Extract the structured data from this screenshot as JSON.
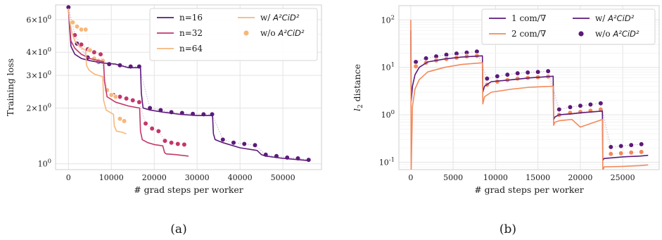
{
  "captions": {
    "a": "(a)",
    "b": "(b)"
  },
  "chart_data": [
    {
      "type": "line",
      "panel": "a",
      "xlabel": "# grad steps per worker",
      "ylabel": "Training loss",
      "yscale": "log",
      "xlim": [
        -3000,
        59000
      ],
      "ylim": [
        0.93,
        7.2
      ],
      "xticks": [
        0,
        10000,
        20000,
        30000,
        40000,
        50000
      ],
      "xtick_labels": [
        "0",
        "10000",
        "20000",
        "30000",
        "40000",
        "50000"
      ],
      "yticks": [
        1,
        2,
        3,
        4,
        6
      ],
      "ytick_labels": [
        "10^0",
        "2×10^0",
        "3×10^0",
        "4×10^0",
        "6×10^0"
      ],
      "grid": true,
      "legend_position": "top-right",
      "legend": [
        {
          "label": "n=16",
          "kind": "line",
          "color": "#5c1a7a"
        },
        {
          "label": "n=32",
          "kind": "line",
          "color": "#c2376b"
        },
        {
          "label": "n=64",
          "kind": "line",
          "color": "#f6b77b"
        },
        {
          "label": "w/ A²CiD²",
          "kind": "line",
          "color": "#f6b77b"
        },
        {
          "label": "w/o A²CiD²",
          "kind": "marker",
          "color": "#f6b77b"
        }
      ],
      "series": [
        {
          "name": "n=16",
          "color": "#5c1a7a",
          "x": [
            0,
            300,
            600,
            1500,
            3000,
            5000,
            8000,
            11000,
            14000,
            16800,
            17000,
            17400,
            19000,
            22000,
            26000,
            30000,
            33600,
            33800,
            34200,
            36000,
            40000,
            44000,
            45000,
            46000,
            50000,
            54000,
            56000
          ],
          "y": [
            6.9,
            5.3,
            4.3,
            3.9,
            3.7,
            3.6,
            3.5,
            3.45,
            3.3,
            3.3,
            2.4,
            2.0,
            1.95,
            1.9,
            1.85,
            1.82,
            1.82,
            1.45,
            1.35,
            1.3,
            1.22,
            1.18,
            1.12,
            1.1,
            1.07,
            1.05,
            1.04
          ]
        },
        {
          "name": "n=32",
          "color": "#c2376b",
          "x": [
            0,
            300,
            600,
            1500,
            3000,
            5000,
            7000,
            8200,
            8400,
            9000,
            11000,
            14000,
            16600,
            16800,
            17200,
            18500,
            20000,
            22000,
            22400,
            22800,
            25000,
            28000
          ],
          "y": [
            6.9,
            5.5,
            4.6,
            4.2,
            3.9,
            3.7,
            3.6,
            3.55,
            2.8,
            2.3,
            2.15,
            2.05,
            2.0,
            1.5,
            1.35,
            1.3,
            1.27,
            1.25,
            1.15,
            1.13,
            1.12,
            1.1
          ]
        },
        {
          "name": "n=64",
          "color": "#f6b77b",
          "x": [
            0,
            300,
            800,
            1500,
            2500,
            4000,
            4200,
            4800,
            6000,
            8000,
            8200,
            8800,
            10500,
            10700,
            11200,
            12500,
            13500
          ],
          "y": [
            6.9,
            5.9,
            5.1,
            4.6,
            4.3,
            4.1,
            3.4,
            3.2,
            3.05,
            2.95,
            2.2,
            1.95,
            1.85,
            1.6,
            1.5,
            1.48,
            1.45
          ]
        }
      ],
      "series_without": [
        {
          "name": "n=16",
          "color": "#5c1a7a",
          "x": [
            0,
            2000,
            4500,
            7000,
            9500,
            12000,
            14500,
            16500,
            19000,
            21500,
            24000,
            26500,
            29000,
            31500,
            33500,
            36000,
            38500,
            41000,
            43500,
            46000,
            48500,
            51000,
            53500,
            56000
          ],
          "y": [
            7.0,
            4.45,
            3.75,
            3.55,
            3.45,
            3.4,
            3.35,
            3.35,
            2.0,
            1.95,
            1.9,
            1.88,
            1.86,
            1.85,
            1.85,
            1.35,
            1.3,
            1.28,
            1.26,
            1.12,
            1.1,
            1.08,
            1.07,
            1.05
          ]
        },
        {
          "name": "n=32",
          "color": "#c2376b",
          "x": [
            1500,
            3000,
            4500,
            6000,
            7500,
            9000,
            10500,
            12000,
            13500,
            15000,
            16500,
            18000,
            19500,
            21000,
            22500,
            24000,
            25500,
            27000
          ],
          "y": [
            4.95,
            4.4,
            4.15,
            4.0,
            3.9,
            2.5,
            2.35,
            2.3,
            2.25,
            2.2,
            2.15,
            1.65,
            1.55,
            1.5,
            1.33,
            1.3,
            1.28,
            1.27
          ]
        },
        {
          "name": "n=64",
          "color": "#f6b77b",
          "x": [
            1000,
            2000,
            3000,
            4000,
            5000,
            6000,
            7000,
            8000,
            9000,
            10000,
            11000,
            12000,
            13000
          ],
          "y": [
            5.8,
            5.5,
            5.3,
            5.3,
            4.1,
            3.7,
            3.6,
            3.6,
            2.5,
            2.35,
            2.3,
            1.75,
            1.7
          ]
        }
      ]
    },
    {
      "type": "line",
      "panel": "b",
      "xlabel": "# grad steps per worker",
      "ylabel": "l_2 distance",
      "yscale": "log",
      "xlim": [
        -1400,
        29300
      ],
      "ylim": [
        0.07,
        200
      ],
      "xticks": [
        0,
        5000,
        10000,
        15000,
        20000,
        25000
      ],
      "xtick_labels": [
        "0",
        "5000",
        "10000",
        "15000",
        "20000",
        "25000"
      ],
      "yticks": [
        0.1,
        1,
        10,
        100
      ],
      "ytick_labels": [
        "10^-1",
        "10^0",
        "10^1",
        "10^2"
      ],
      "grid": true,
      "legend_position": "top-right",
      "legend": [
        {
          "label": "1 com/∇",
          "kind": "line",
          "color": "#5c1a7a"
        },
        {
          "label": "2 com/∇",
          "kind": "line",
          "color": "#f4895a"
        },
        {
          "label": "w/ A²CiD²",
          "kind": "line",
          "color": "#5c1a7a"
        },
        {
          "label": "w/o A²CiD²",
          "kind": "marker",
          "color": "#5c1a7a"
        }
      ],
      "series": [
        {
          "name": "1 com/∇",
          "color": "#5c1a7a",
          "x": [
            0,
            50,
            200,
            500,
            1000,
            2000,
            4000,
            6000,
            8450,
            8500,
            8700,
            9500,
            12000,
            14000,
            16800,
            16850,
            17000,
            17500,
            19000,
            20000,
            22600,
            22650,
            22800,
            25000,
            27000,
            28000
          ],
          "y": [
            60,
            2.0,
            4.0,
            7.0,
            10.0,
            13.0,
            15.0,
            16.5,
            17.5,
            3.0,
            4.0,
            5.0,
            5.5,
            6.0,
            6.5,
            0.8,
            0.9,
            1.0,
            1.05,
            1.1,
            1.2,
            0.11,
            0.12,
            0.13,
            0.135,
            0.14
          ]
        },
        {
          "name": "2 com/∇",
          "color": "#f4895a",
          "x": [
            0,
            50,
            200,
            500,
            1000,
            2000,
            4000,
            6000,
            8450,
            8500,
            8700,
            9500,
            12000,
            14000,
            16800,
            16850,
            17000,
            17500,
            19000,
            20000,
            22600,
            22650,
            22800,
            25000,
            27000,
            28000
          ],
          "y": [
            100,
            0.07,
            1.5,
            3.5,
            5.5,
            8.0,
            10.0,
            11.5,
            12.5,
            1.7,
            2.4,
            3.0,
            3.5,
            3.8,
            4.0,
            0.6,
            0.7,
            0.75,
            0.8,
            0.55,
            0.8,
            0.065,
            0.08,
            0.082,
            0.085,
            0.088
          ]
        }
      ],
      "series_without": [
        {
          "name": "1 com/∇",
          "color": "#5c1a7a",
          "x": [
            600,
            1800,
            3000,
            4200,
            5400,
            6600,
            7800,
            9000,
            10200,
            11400,
            12600,
            13800,
            15000,
            16200,
            17500,
            18800,
            20000,
            21200,
            22400,
            23600,
            24800,
            26000,
            27200
          ],
          "y": [
            13,
            15.5,
            17,
            18.5,
            19.5,
            20.5,
            21.5,
            5.8,
            6.5,
            7.0,
            7.5,
            7.8,
            8.0,
            8.3,
            1.3,
            1.45,
            1.55,
            1.65,
            1.75,
            0.21,
            0.22,
            0.23,
            0.24
          ]
        },
        {
          "name": "2 com/∇",
          "color": "#f4895a",
          "x": [
            600,
            1800,
            3000,
            4200,
            5400,
            6600,
            7800,
            9000,
            10200,
            11400,
            12600,
            13800,
            15000,
            16200,
            17500,
            18800,
            20000,
            21200,
            22400,
            23600,
            24800,
            26000,
            27200
          ],
          "y": [
            10.5,
            12.5,
            14,
            15,
            16,
            17,
            17.5,
            4.3,
            5.0,
            5.4,
            5.8,
            6.0,
            6.2,
            6.4,
            1.0,
            1.1,
            1.15,
            1.22,
            1.3,
            0.15,
            0.155,
            0.16,
            0.165
          ]
        }
      ]
    }
  ]
}
